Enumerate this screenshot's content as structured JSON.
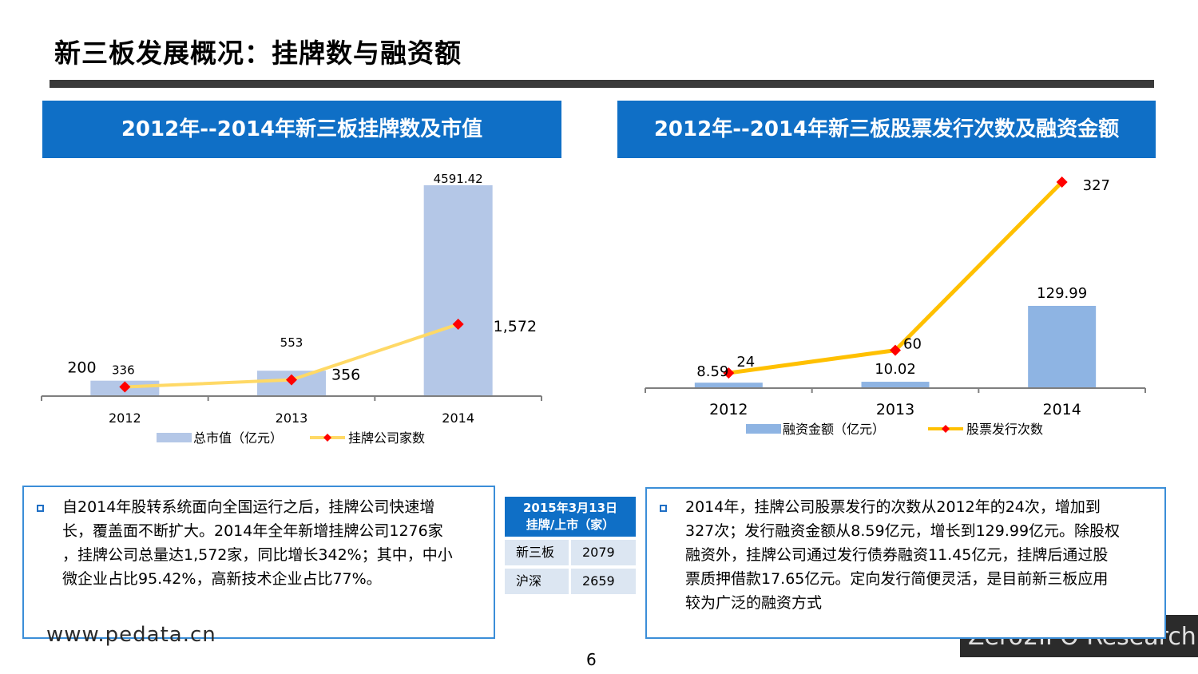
{
  "page": {
    "title": "新三板发展概况：挂牌数与融资额",
    "page_number": "6",
    "footer_left": "www.pedata.cn",
    "footer_right": "Zero2IPO Research"
  },
  "colors": {
    "header_blue": "#0f6fc6",
    "bar_light_blue": "#b4c7e7",
    "bar_blue": "#8eb4e3",
    "line_light_yellow": "#ffd966",
    "line_yellow": "#ffc000",
    "marker_red": "#ff0000"
  },
  "left_panel": {
    "header": "2012年--2014年新三板挂牌数及市值"
  },
  "right_panel": {
    "header": "2012年--2014年新三板股票发行次数及融资金额"
  },
  "chart_data": [
    {
      "type": "bar",
      "categories": [
        "2012",
        "2013",
        "2014"
      ],
      "series": [
        {
          "name": "总市值（亿元）",
          "type": "bar",
          "values": [
            336,
            553,
            4591.42
          ],
          "labels": [
            "336",
            "553",
            "4591.42"
          ]
        },
        {
          "name": "挂牌公司家数",
          "type": "line",
          "values": [
            200,
            356,
            1572
          ],
          "labels": [
            "200",
            "356",
            "1,572"
          ]
        }
      ],
      "legend": "bottom",
      "grid": false
    },
    {
      "type": "bar",
      "categories": [
        "2012",
        "2013",
        "2014"
      ],
      "series": [
        {
          "name": "融资金额（亿元）",
          "type": "bar",
          "values": [
            8.59,
            10.02,
            129.99
          ],
          "labels": [
            "8.59",
            "10.02",
            "129.99"
          ]
        },
        {
          "name": "股票发行次数",
          "type": "line",
          "values": [
            24,
            60,
            327
          ],
          "labels": [
            "24",
            "60",
            "327"
          ]
        }
      ],
      "legend": "bottom",
      "grid": false
    }
  ],
  "left_text": {
    "lines": [
      "自2014年股转系统面向全国运行之后，挂牌公司快速增",
      "长，覆盖面不断扩大。2014年全年新增挂牌公司1276家",
      "，挂牌公司总量达1,572家，同比增长342%；其中，中小",
      "微企业占比95.42%，高新技术企业占比77%。"
    ]
  },
  "mini_table": {
    "header_line1": "2015年3月13日",
    "header_line2": "挂牌/上市（家）",
    "rows": [
      {
        "name": "新三板",
        "value": "2079"
      },
      {
        "name": "沪深",
        "value": "2659"
      }
    ]
  },
  "right_text": {
    "lines": [
      "2014年，挂牌公司股票发行的次数从2012年的24次，增加到",
      "327次；发行融资金额从8.59亿元，增长到129.99亿元。除股权",
      "融资外，挂牌公司通过发行债券融资11.45亿元，挂牌后通过股",
      "票质押借款17.65亿元。定向发行简便灵活，是目前新三板应用",
      "较为广泛的融资方式"
    ]
  }
}
